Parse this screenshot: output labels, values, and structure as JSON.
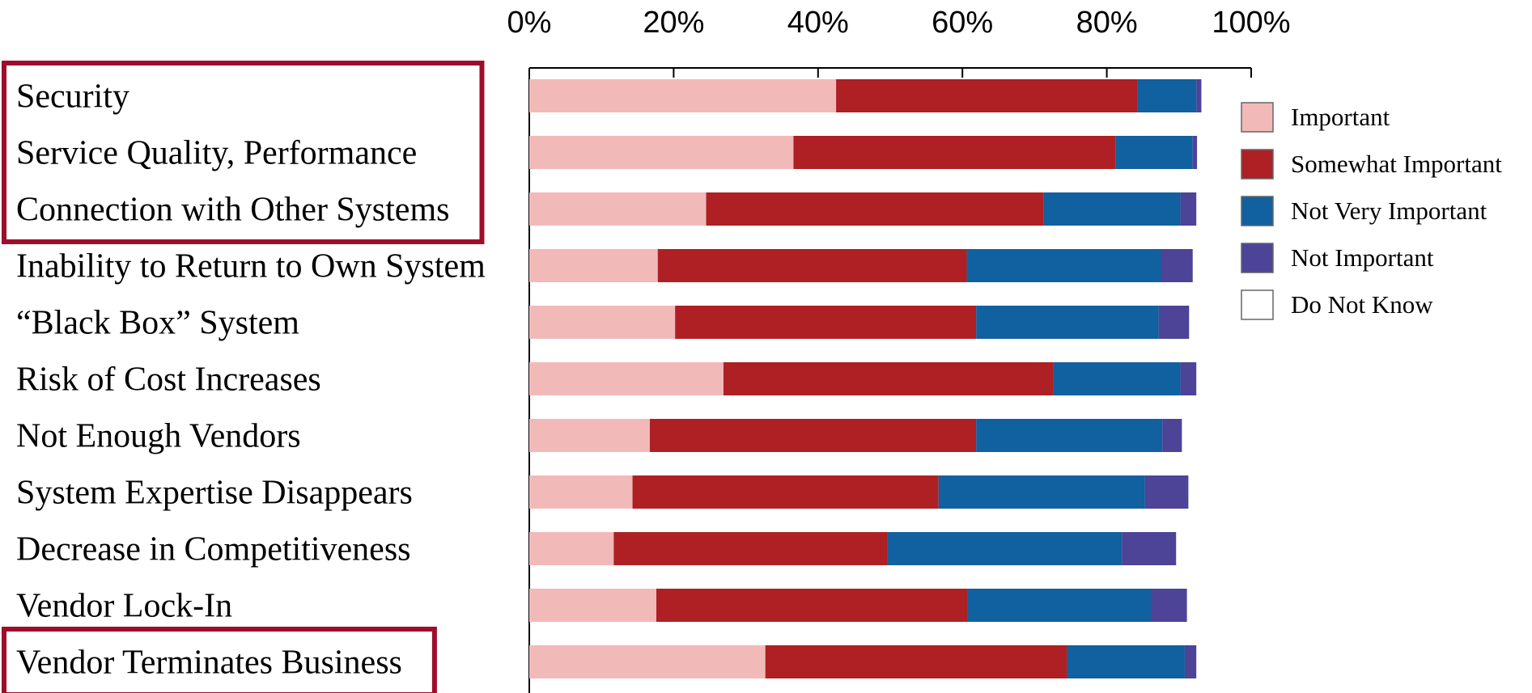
{
  "chart_data": {
    "type": "bar",
    "orientation": "horizontal",
    "stacked": true,
    "title": "",
    "xlabel": "",
    "ylabel": "",
    "xlim": [
      0,
      100
    ],
    "x_ticks": [
      "0%",
      "20%",
      "40%",
      "60%",
      "80%",
      "100%"
    ],
    "x_axis_position": "top",
    "grid": false,
    "legend_position": "right",
    "categories": [
      "Security",
      "Service Quality, Performance",
      "Connection with Other Systems",
      "Inability to Return to Own System",
      "“Black Box” System",
      "Risk of Cost Increases",
      "Not Enough Vendors",
      "System Expertise Disappears",
      "Decrease in Competitiveness",
      "Vendor Lock-In",
      "Vendor Terminates Business"
    ],
    "highlighted_categories": [
      "Security",
      "Service Quality, Performance",
      "Connection with Other Systems",
      "Vendor Terminates Business"
    ],
    "highlight_color": "#9e0e2c",
    "series": [
      {
        "name": "Important",
        "color": "#f2b9b9",
        "values": [
          42.5,
          36.6,
          24.5,
          17.8,
          20.2,
          26.9,
          16.7,
          14.3,
          11.7,
          17.6,
          32.7
        ]
      },
      {
        "name": "Somewhat Important",
        "color": "#ae2024",
        "values": [
          41.7,
          44.6,
          46.7,
          42.8,
          41.7,
          45.7,
          45.2,
          42.4,
          37.9,
          43.1,
          41.8
        ]
      },
      {
        "name": "Not Very Important",
        "color": "#11609f",
        "values": [
          8.2,
          10.7,
          19.0,
          26.9,
          25.3,
          17.6,
          25.8,
          28.6,
          32.5,
          25.4,
          16.3
        ]
      },
      {
        "name": "Not Important",
        "color": "#4d4397",
        "values": [
          0.7,
          0.6,
          2.2,
          4.4,
          4.2,
          2.2,
          2.7,
          6.0,
          7.5,
          5.0,
          1.6
        ]
      },
      {
        "name": "Do Not Know",
        "color": "#ffffff",
        "values": [
          0,
          0,
          0,
          0,
          0,
          0,
          0,
          0,
          0,
          0,
          0
        ]
      }
    ]
  }
}
